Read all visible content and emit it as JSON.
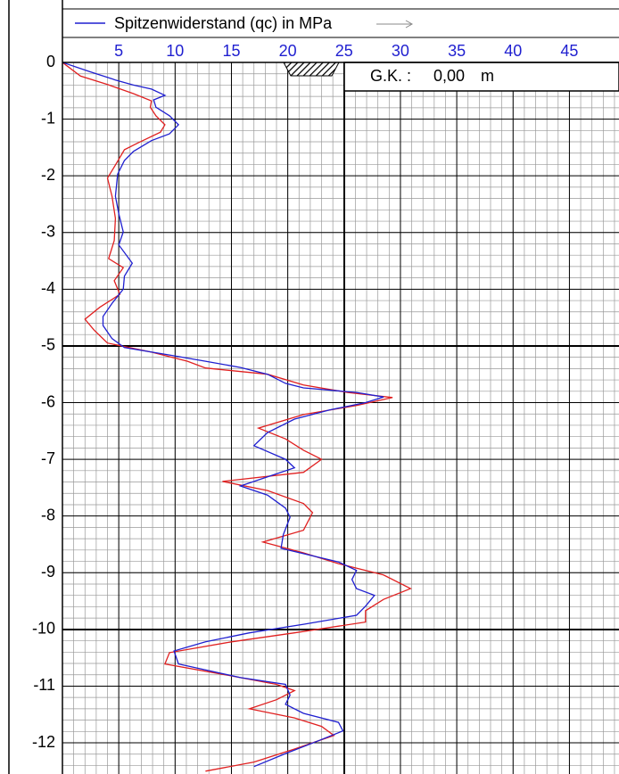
{
  "chart_data": {
    "type": "line",
    "legend_title": "Spitzenwiderstand (qc) in MPa",
    "annotation": {
      "label": "G.K. :",
      "value": "0,00",
      "unit": "m"
    },
    "xlim": [
      0,
      49.4
    ],
    "xticks": [
      5,
      10,
      15,
      20,
      25,
      30,
      35,
      40,
      45
    ],
    "ylim": [
      -12.55,
      0
    ],
    "yticks": [
      0,
      -1,
      -2,
      -3,
      -4,
      -5,
      -6,
      -7,
      -8,
      -9,
      -10,
      -11,
      -12
    ],
    "grid": true,
    "series": [
      {
        "name": "Spitzenwiderstand (qc) in MPa",
        "color": "#1f1fd0",
        "x": [
          0,
          2.4,
          4.7,
          6.3,
          7.9,
          9.1,
          8.1,
          8.3,
          9.5,
          10.3,
          9.5,
          7.9,
          6.3,
          5.5,
          4.9,
          4.7,
          5.0,
          5.4,
          5.0,
          6.2,
          5.5,
          5.4,
          4.4,
          3.6,
          3.6,
          4.4,
          5.5,
          9.5,
          12.7,
          15.8,
          18.2,
          19.8,
          21.4,
          26.1,
          28.5,
          26.9,
          23.7,
          20.6,
          18.2,
          17.0,
          19.8,
          20.6,
          18.2,
          15.8,
          18.2,
          19.8,
          20.2,
          19.6,
          19.4,
          24.5,
          26.1,
          25.7,
          26.1,
          27.7,
          26.9,
          26.1,
          21.4,
          16.6,
          12.7,
          9.9,
          10.3,
          15.8,
          19.8,
          20.2,
          19.8,
          21.4,
          24.5,
          24.9,
          22.9,
          19.8,
          17.0
        ],
        "values": [
          0,
          -0.16,
          -0.31,
          -0.4,
          -0.47,
          -0.58,
          -0.66,
          -0.79,
          -0.94,
          -1.1,
          -1.26,
          -1.38,
          -1.57,
          -1.73,
          -1.97,
          -2.36,
          -2.67,
          -2.99,
          -3.22,
          -3.54,
          -3.77,
          -4.0,
          -4.25,
          -4.48,
          -4.64,
          -4.87,
          -5.03,
          -5.16,
          -5.27,
          -5.38,
          -5.5,
          -5.66,
          -5.74,
          -5.82,
          -5.9,
          -6.0,
          -6.13,
          -6.29,
          -6.53,
          -6.76,
          -7.0,
          -7.15,
          -7.31,
          -7.47,
          -7.63,
          -7.86,
          -8.02,
          -8.33,
          -8.57,
          -8.81,
          -8.96,
          -9.12,
          -9.28,
          -9.4,
          -9.59,
          -9.75,
          -9.91,
          -10.06,
          -10.22,
          -10.38,
          -10.61,
          -10.85,
          -10.97,
          -11.16,
          -11.32,
          -11.48,
          -11.64,
          -11.79,
          -11.95,
          -12.19,
          -12.42
        ]
      },
      {
        "color": "#e02020",
        "x": [
          0,
          1.6,
          4.0,
          6.3,
          7.9,
          7.8,
          8.3,
          9.1,
          8.7,
          6.7,
          5.5,
          4.7,
          4.0,
          4.4,
          4.7,
          4.6,
          4.1,
          5.4,
          4.6,
          5.1,
          3.3,
          2.0,
          2.8,
          4.0,
          7.9,
          11.1,
          12.7,
          18.2,
          21.4,
          25.3,
          29.3,
          26.1,
          21.4,
          17.4,
          19.8,
          21.4,
          23.0,
          21.4,
          14.2,
          18.2,
          21.4,
          22.2,
          21.4,
          17.8,
          21.4,
          24.5,
          28.5,
          30.9,
          28.5,
          26.9,
          26.9,
          20.6,
          15.0,
          9.5,
          9.1,
          15.0,
          19.0,
          20.6,
          19.0,
          16.6,
          20.6,
          23.0,
          24.1,
          20.6,
          17.0,
          12.7
        ],
        "values": [
          0,
          -0.24,
          -0.39,
          -0.55,
          -0.68,
          -0.79,
          -0.94,
          -1.1,
          -1.23,
          -1.42,
          -1.54,
          -1.81,
          -2.04,
          -2.36,
          -2.75,
          -3.14,
          -3.46,
          -3.62,
          -3.85,
          -4.09,
          -4.32,
          -4.53,
          -4.72,
          -4.95,
          -5.11,
          -5.27,
          -5.39,
          -5.5,
          -5.69,
          -5.82,
          -5.91,
          -6.05,
          -6.21,
          -6.45,
          -6.64,
          -6.84,
          -7.0,
          -7.23,
          -7.39,
          -7.55,
          -7.78,
          -7.94,
          -8.25,
          -8.46,
          -8.65,
          -8.84,
          -9.04,
          -9.28,
          -9.47,
          -9.67,
          -9.87,
          -10.06,
          -10.22,
          -10.41,
          -10.61,
          -10.82,
          -10.97,
          -11.08,
          -11.24,
          -11.4,
          -11.56,
          -11.71,
          -11.87,
          -12.11,
          -12.34,
          -12.5
        ]
      }
    ]
  }
}
